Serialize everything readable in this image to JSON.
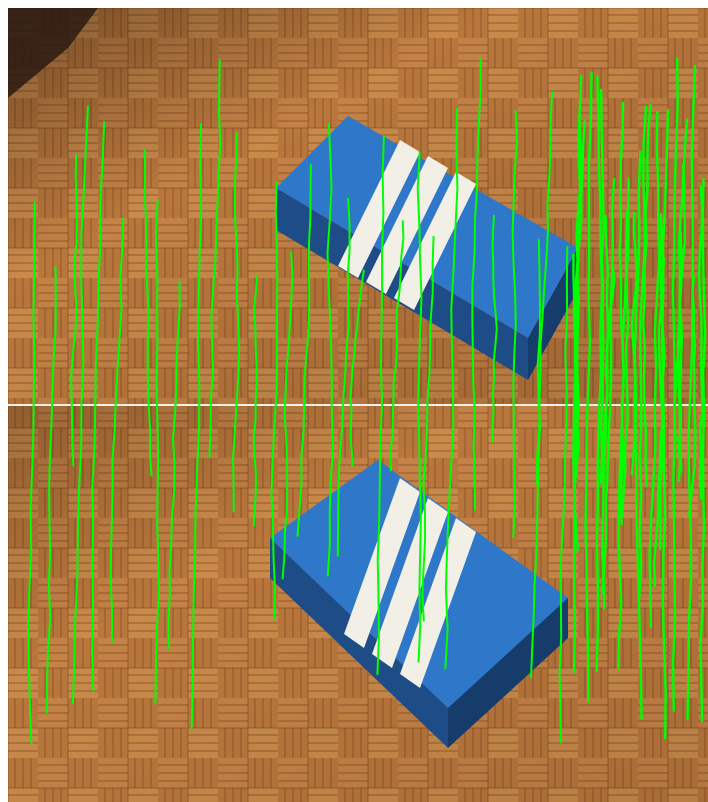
{
  "figure": {
    "panels": [
      "upper-image",
      "lower-image"
    ],
    "colors": {
      "match_line": "#00ff00",
      "divider": "#f4f0e8",
      "parquet_light": "#c98a4a",
      "parquet_dark": "#8a4f22",
      "box_blue": "#2f77c8",
      "box_stripe": "#f2efe6"
    }
  }
}
